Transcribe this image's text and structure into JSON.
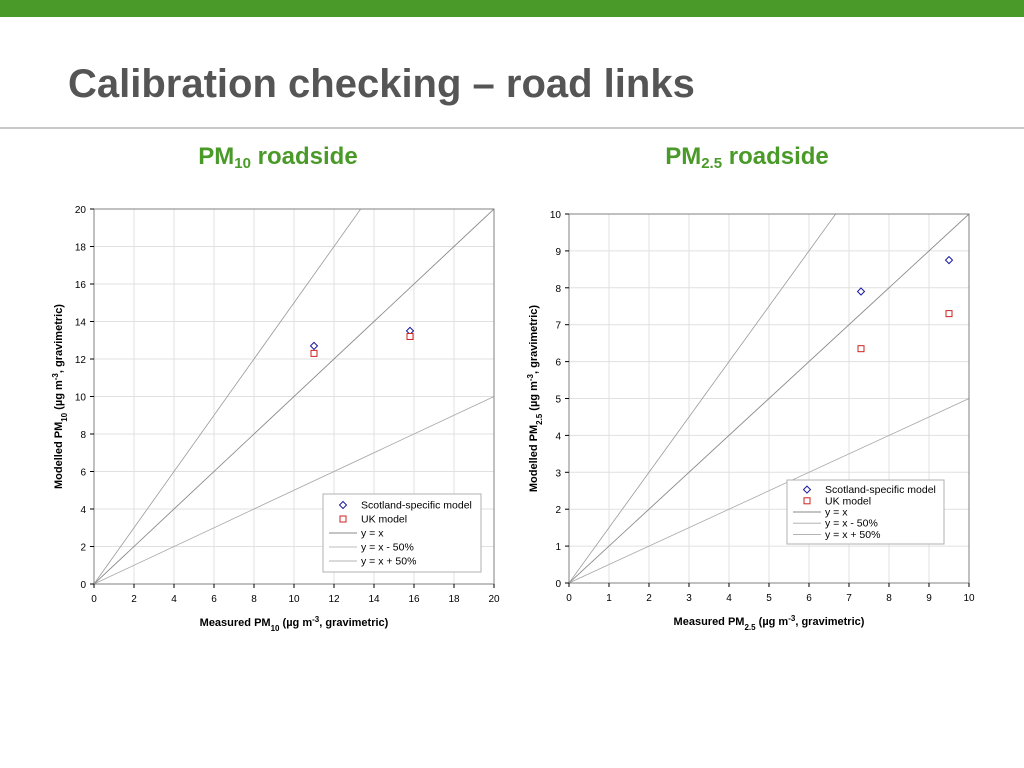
{
  "slide": {
    "title": "Calibration checking – road links",
    "colors": {
      "bar": "#4a9a2a",
      "heading": "#4a9a2a",
      "title": "#555555"
    }
  },
  "chart_data": [
    {
      "type": "scatter",
      "heading": {
        "main": "PM",
        "sub": "10",
        "suffix": " roadside"
      },
      "xlabel": {
        "pre": "Measured PM",
        "sub": "10",
        "mid": " (µg m",
        "sup": "-3",
        "post": ", gravimetric)"
      },
      "ylabel": {
        "pre": "Modelled PM",
        "sub": "10",
        "mid": " (µg m",
        "sup": "-3",
        "post": ", gravimetric)"
      },
      "xlim": [
        0,
        20
      ],
      "ylim": [
        0,
        20
      ],
      "xticks": [
        0,
        2,
        4,
        6,
        8,
        10,
        12,
        14,
        16,
        18,
        20
      ],
      "yticks": [
        0,
        2,
        4,
        6,
        8,
        10,
        12,
        14,
        16,
        18,
        20
      ],
      "grid": true,
      "legend_position": "bottom-right",
      "series": [
        {
          "name": "Scotland-specific model",
          "marker": "diamond",
          "color": "#1a1aa0",
          "points": [
            [
              11.0,
              12.7
            ],
            [
              15.8,
              13.5
            ]
          ]
        },
        {
          "name": "UK model",
          "marker": "square",
          "color": "#cc2222",
          "points": [
            [
              11.0,
              12.3
            ],
            [
              15.8,
              13.2
            ]
          ]
        }
      ],
      "reference_lines": [
        {
          "name": "y = x",
          "slope": 1
        },
        {
          "name": "y = x - 50%",
          "slope": 0.5
        },
        {
          "name": "y = x + 50%",
          "slope": 1.5
        }
      ],
      "legend_order": [
        "Scotland-specific model",
        "UK model",
        "y = x",
        "y = x - 50%",
        "y = x + 50%"
      ]
    },
    {
      "type": "scatter",
      "heading": {
        "main": "PM",
        "sub": "2.5",
        "suffix": " roadside"
      },
      "xlabel": {
        "pre": "Measured PM",
        "sub": "2.5",
        "mid": " (µg m",
        "sup": "-3",
        "post": ", gravimetric)"
      },
      "ylabel": {
        "pre": "Modelled PM",
        "sub": "2.5",
        "mid": " (µg m",
        "sup": "-3",
        "post": ", gravimetric)"
      },
      "xlim": [
        0,
        10
      ],
      "ylim": [
        0,
        10
      ],
      "xticks": [
        0,
        1,
        2,
        3,
        4,
        5,
        6,
        7,
        8,
        9,
        10
      ],
      "yticks": [
        0,
        1,
        2,
        3,
        4,
        5,
        6,
        7,
        8,
        9,
        10
      ],
      "grid": true,
      "legend_position": "bottom-right",
      "series": [
        {
          "name": "Scotland-specific model",
          "marker": "diamond",
          "color": "#1a1aa0",
          "points": [
            [
              7.3,
              7.9
            ],
            [
              9.5,
              8.75
            ]
          ]
        },
        {
          "name": "UK model",
          "marker": "square",
          "color": "#cc2222",
          "points": [
            [
              7.3,
              6.35
            ],
            [
              9.5,
              7.3
            ]
          ]
        }
      ],
      "reference_lines": [
        {
          "name": "y = x",
          "slope": 1
        },
        {
          "name": "y = x - 50%",
          "slope": 0.5
        },
        {
          "name": "y = x + 50%",
          "slope": 1.5
        }
      ],
      "legend_order": [
        "Scotland-specific model",
        "UK model",
        "y = x",
        "y = x - 50%",
        "y = x + 50%"
      ]
    }
  ]
}
